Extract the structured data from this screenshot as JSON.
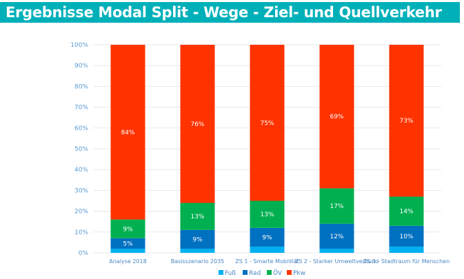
{
  "title": "Ergebnisse Modal Split - Wege - Ziel- und Quellverkehr",
  "chart_data": {
    "type": "bar",
    "stacked": true,
    "title": "Ergebnisse Modal Split - Wege - Ziel- und Quellverkehr",
    "categories": [
      "Analyse 2018",
      "Basisszenario 2035",
      "ZS 1 - Smarte Mobilität",
      "ZS 2 - Starker Umweltverbund",
      "ZS 3 - Stadtraum für Menschen"
    ],
    "series": [
      {
        "name": "Fuß",
        "color": "#00b0f0",
        "values": [
          2,
          2,
          3,
          2,
          3
        ],
        "labels": [
          "",
          "",
          "",
          "",
          ""
        ]
      },
      {
        "name": "Rad",
        "color": "#0070c0",
        "values": [
          5,
          9,
          9,
          12,
          10
        ],
        "labels": [
          "5%",
          "9%",
          "9%",
          "12%",
          "10%"
        ]
      },
      {
        "name": "ÖV",
        "color": "#00b050",
        "values": [
          9,
          13,
          13,
          17,
          14
        ],
        "labels": [
          "9%",
          "13%",
          "13%",
          "17%",
          "14%"
        ]
      },
      {
        "name": "Pkw",
        "color": "#ff3300",
        "values": [
          84,
          76,
          75,
          69,
          73
        ],
        "labels": [
          "84%",
          "76%",
          "75%",
          "69%",
          "73%"
        ]
      }
    ],
    "ylim": [
      0,
      100
    ],
    "yticks": [
      "0%",
      "10%",
      "20%",
      "30%",
      "40%",
      "50%",
      "60%",
      "70%",
      "80%",
      "90%",
      "100%"
    ],
    "grid": true,
    "legend": "bottom"
  }
}
